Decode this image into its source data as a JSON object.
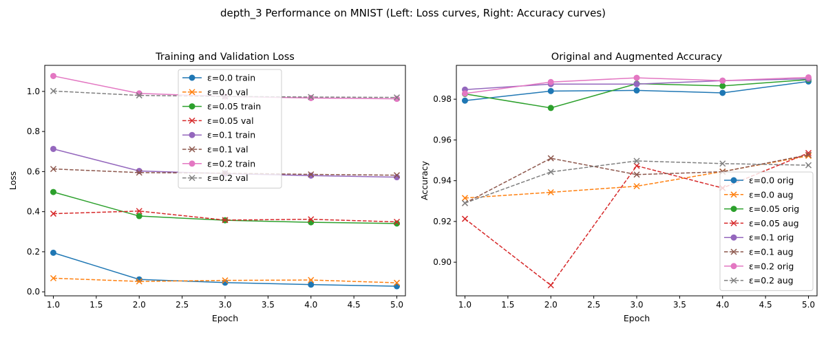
{
  "figure": {
    "suptitle": "depth_3 Performance on MNIST (Left: Loss curves, Right: Accuracy curves)"
  },
  "chart_data": [
    {
      "type": "line",
      "title": "Training and Validation Loss",
      "xlabel": "Epoch",
      "ylabel": "Loss",
      "xlim": [
        0.9,
        5.1
      ],
      "ylim": [
        -0.02,
        1.13
      ],
      "xticks": [
        1.0,
        1.5,
        2.0,
        2.5,
        3.0,
        3.5,
        4.0,
        4.5,
        5.0
      ],
      "xtick_labels": [
        "1.0",
        "1.5",
        "2.0",
        "2.5",
        "3.0",
        "3.5",
        "4.0",
        "4.5",
        "5.0"
      ],
      "yticks": [
        0.0,
        0.2,
        0.4,
        0.6,
        0.8,
        1.0
      ],
      "ytick_labels": [
        "0.0",
        "0.2",
        "0.4",
        "0.6",
        "0.8",
        "1.0"
      ],
      "grid": false,
      "legend": "upper-center",
      "x": [
        1,
        2,
        3,
        4,
        5
      ],
      "series": [
        {
          "name": "ε=0.0 train",
          "values": [
            0.195,
            0.062,
            0.046,
            0.036,
            0.028
          ],
          "color": "#1f77b4",
          "dash": false,
          "marker": "circle"
        },
        {
          "name": "ε=0.0 val",
          "values": [
            0.068,
            0.052,
            0.057,
            0.059,
            0.045
          ],
          "color": "#ff7f0e",
          "dash": true,
          "marker": "x"
        },
        {
          "name": "ε=0.05 train",
          "values": [
            0.498,
            0.378,
            0.357,
            0.347,
            0.341
          ],
          "color": "#2ca02c",
          "dash": false,
          "marker": "circle"
        },
        {
          "name": "ε=0.05 val",
          "values": [
            0.39,
            0.403,
            0.358,
            0.362,
            0.349
          ],
          "color": "#d62728",
          "dash": true,
          "marker": "x"
        },
        {
          "name": "ε=0.1 train",
          "values": [
            0.713,
            0.603,
            0.59,
            0.58,
            0.572
          ],
          "color": "#9467bd",
          "dash": false,
          "marker": "circle"
        },
        {
          "name": "ε=0.1 val",
          "values": [
            0.613,
            0.595,
            0.592,
            0.586,
            0.582
          ],
          "color": "#8c564b",
          "dash": true,
          "marker": "x"
        },
        {
          "name": "ε=0.2 train",
          "values": [
            1.077,
            0.99,
            0.975,
            0.967,
            0.963
          ],
          "color": "#e377c2",
          "dash": false,
          "marker": "circle"
        },
        {
          "name": "ε=0.2 val",
          "values": [
            1.002,
            0.98,
            0.975,
            0.972,
            0.97
          ],
          "color": "#7f7f7f",
          "dash": true,
          "marker": "x"
        }
      ]
    },
    {
      "type": "line",
      "title": "Original and Augmented Accuracy",
      "xlabel": "Epoch",
      "ylabel": "Accuracy",
      "xlim": [
        0.9,
        5.1
      ],
      "ylim": [
        0.8835,
        0.9966
      ],
      "xticks": [
        1.0,
        1.5,
        2.0,
        2.5,
        3.0,
        3.5,
        4.0,
        4.5,
        5.0
      ],
      "xtick_labels": [
        "1.0",
        "1.5",
        "2.0",
        "2.5",
        "3.0",
        "3.5",
        "4.0",
        "4.5",
        "5.0"
      ],
      "yticks": [
        0.9,
        0.92,
        0.94,
        0.96,
        0.98
      ],
      "ytick_labels": [
        "0.90",
        "0.92",
        "0.94",
        "0.96",
        "0.98"
      ],
      "grid": false,
      "legend": "lower-right",
      "x": [
        1,
        2,
        3,
        4,
        5
      ],
      "series": [
        {
          "name": "ε=0.0 orig",
          "values": [
            0.9793,
            0.984,
            0.9843,
            0.9831,
            0.9887
          ],
          "color": "#1f77b4",
          "dash": false,
          "marker": "circle"
        },
        {
          "name": "ε=0.0 aug",
          "values": [
            0.9315,
            0.9343,
            0.9373,
            0.9445,
            0.9522
          ],
          "color": "#ff7f0e",
          "dash": true,
          "marker": "x"
        },
        {
          "name": "ε=0.05 orig",
          "values": [
            0.9826,
            0.9757,
            0.9876,
            0.9865,
            0.9896
          ],
          "color": "#2ca02c",
          "dash": false,
          "marker": "circle"
        },
        {
          "name": "ε=0.05 aug",
          "values": [
            0.9213,
            0.8887,
            0.9473,
            0.9364,
            0.9536
          ],
          "color": "#d62728",
          "dash": true,
          "marker": "x"
        },
        {
          "name": "ε=0.1 orig",
          "values": [
            0.9847,
            0.9874,
            0.9874,
            0.9891,
            0.99
          ],
          "color": "#9467bd",
          "dash": false,
          "marker": "circle"
        },
        {
          "name": "ε=0.1 aug",
          "values": [
            0.929,
            0.951,
            0.943,
            0.9444,
            0.9527
          ],
          "color": "#8c564b",
          "dash": true,
          "marker": "x"
        },
        {
          "name": "ε=0.2 orig",
          "values": [
            0.9828,
            0.9884,
            0.9905,
            0.9891,
            0.9907
          ],
          "color": "#e377c2",
          "dash": false,
          "marker": "circle"
        },
        {
          "name": "ε=0.2 aug",
          "values": [
            0.929,
            0.9443,
            0.9497,
            0.9484,
            0.9476
          ],
          "color": "#7f7f7f",
          "dash": true,
          "marker": "x"
        }
      ]
    }
  ]
}
